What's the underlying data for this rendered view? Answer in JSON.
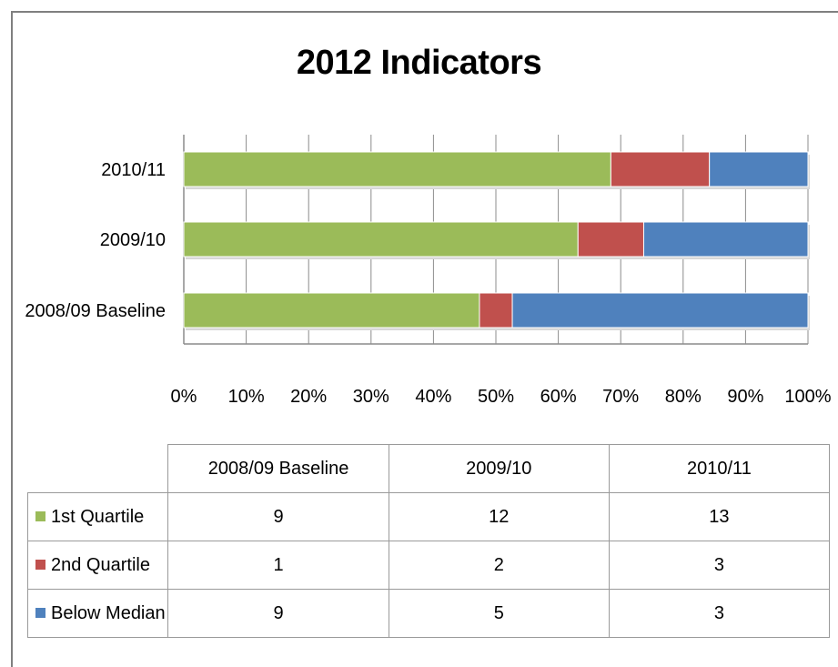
{
  "chart_data": {
    "type": "bar",
    "orientation": "horizontal",
    "stacked": "percent",
    "title": "2012 Indicators",
    "categories": [
      "2008/09 Baseline",
      "2009/10",
      "2010/11"
    ],
    "series": [
      {
        "name": "1st Quartile",
        "color": "#9BBB59",
        "values": [
          9,
          12,
          13
        ]
      },
      {
        "name": "2nd Quartile",
        "color": "#C0504D",
        "values": [
          1,
          2,
          3
        ]
      },
      {
        "name": "Below Median",
        "color": "#4F81BD",
        "values": [
          9,
          5,
          3
        ]
      }
    ],
    "xlim": [
      0,
      100
    ],
    "x_ticks": [
      "0%",
      "10%",
      "20%",
      "30%",
      "40%",
      "50%",
      "60%",
      "70%",
      "80%",
      "90%",
      "100%"
    ],
    "grid": true,
    "legend": "data-table"
  }
}
